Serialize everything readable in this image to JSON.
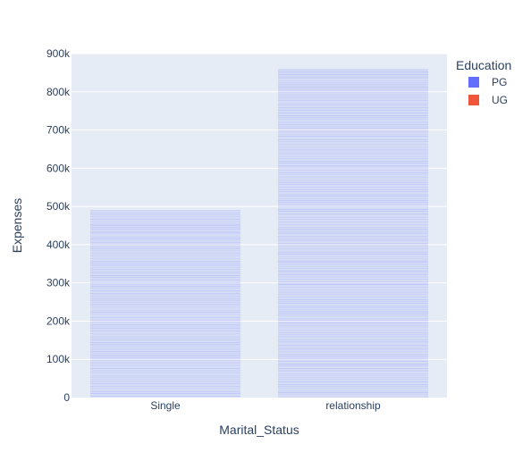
{
  "chart_data": {
    "type": "bar",
    "barmode": "stacked",
    "categories": [
      "Single",
      "relationship"
    ],
    "series": [
      {
        "name": "PG",
        "color": "#636efa",
        "values": [
          490000,
          860000
        ]
      },
      {
        "name": "UG",
        "color": "#ef553b",
        "values": [
          0,
          0
        ]
      }
    ],
    "xlabel": "Marital_Status",
    "ylabel": "Expenses",
    "ylim": [
      0,
      900000
    ],
    "yticks": [
      0,
      100000,
      200000,
      300000,
      400000,
      500000,
      600000,
      700000,
      800000,
      900000
    ],
    "ytick_labels": [
      "0",
      "100k",
      "200k",
      "300k",
      "400k",
      "500k",
      "600k",
      "700k",
      "800k",
      "900k"
    ],
    "grid": true,
    "plot_background": "#e5ecf6",
    "legend": {
      "title": "Education",
      "position": "top-right"
    }
  }
}
